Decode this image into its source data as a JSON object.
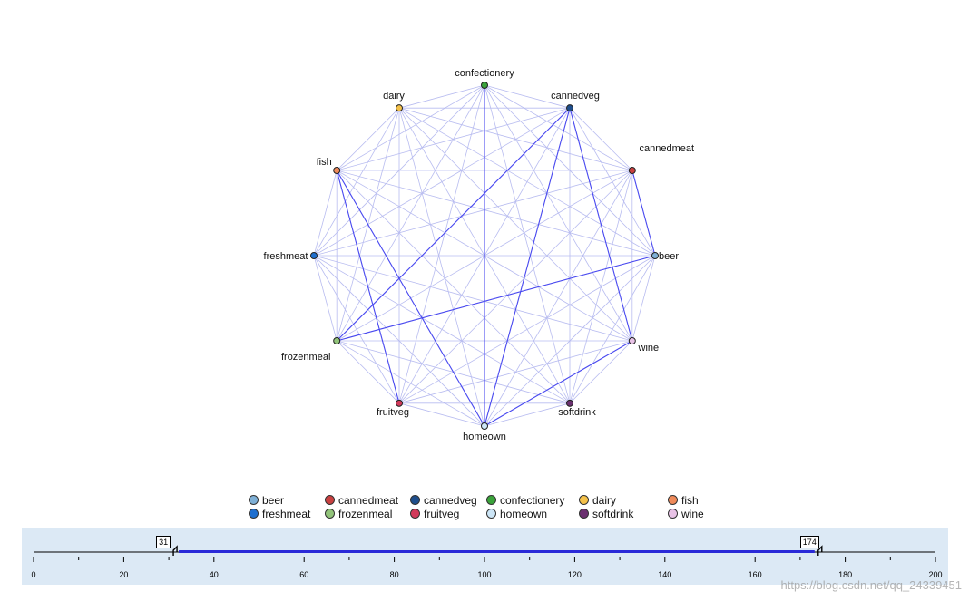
{
  "chart_data": {
    "type": "web",
    "nodes": [
      {
        "name": "confectionery",
        "color": "#3aa33a"
      },
      {
        "name": "cannedveg",
        "color": "#1f4e8c"
      },
      {
        "name": "cannedmeat",
        "color": "#c94040"
      },
      {
        "name": "beer",
        "color": "#7fb0d6"
      },
      {
        "name": "wine",
        "color": "#e8c2e6"
      },
      {
        "name": "softdrink",
        "color": "#6b3070"
      },
      {
        "name": "homeown",
        "color": "#cde6f7"
      },
      {
        "name": "fruitveg",
        "color": "#d23a5a"
      },
      {
        "name": "frozenmeal",
        "color": "#92c47a"
      },
      {
        "name": "freshmeat",
        "color": "#1f6fcf"
      },
      {
        "name": "fish",
        "color": "#ef8a5a"
      },
      {
        "name": "dairy",
        "color": "#f4c14a"
      }
    ],
    "strong_links": [
      [
        "confectionery",
        "homeown"
      ],
      [
        "cannedveg",
        "frozenmeal"
      ],
      [
        "cannedveg",
        "wine"
      ],
      [
        "cannedveg",
        "homeown"
      ],
      [
        "cannedmeat",
        "beer"
      ],
      [
        "beer",
        "frozenmeal"
      ],
      [
        "fish",
        "fruitveg"
      ],
      [
        "fish",
        "homeown"
      ],
      [
        "wine",
        "homeown"
      ]
    ],
    "legend_order": [
      "beer",
      "cannedmeat",
      "cannedveg",
      "confectionery",
      "dairy",
      "fish",
      "freshmeat",
      "frozenmeal",
      "fruitveg",
      "homeown",
      "softdrink",
      "wine"
    ],
    "slider": {
      "min": 0,
      "max": 200,
      "ticks": [
        0,
        20,
        40,
        60,
        80,
        100,
        120,
        140,
        160,
        180,
        200
      ],
      "low": 31,
      "high": 174
    }
  },
  "watermark": "https://blog.csdn.net/qq_24339451"
}
